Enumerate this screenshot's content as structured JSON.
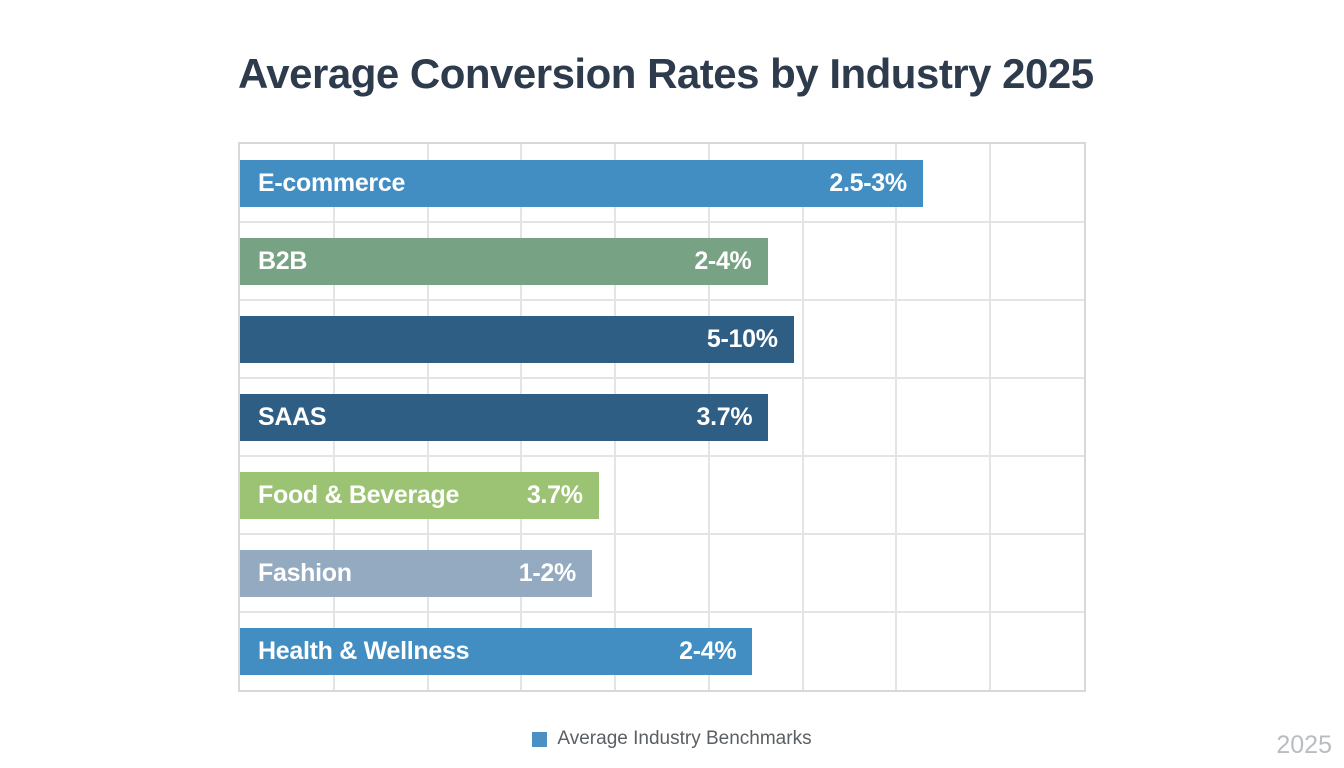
{
  "chart_data": {
    "type": "bar",
    "orientation": "horizontal",
    "title": "Average Conversion Rates by Industry 2025",
    "legend": {
      "label": "Average Industry Benchmarks",
      "marker_color": "#4a90c2",
      "position": "bottom-center"
    },
    "watermark": "2025",
    "grid": {
      "visible": true,
      "columns": 9,
      "rows": 7,
      "line_color": "#e4e4e4",
      "border_color": "#d8d8d8"
    },
    "bars": [
      {
        "label": "E-commerce",
        "value_label": "2.5-3%",
        "length_pct": 80.9,
        "color": "#428ec2"
      },
      {
        "label": "B2B",
        "value_label": "2-4%",
        "length_pct": 62.5,
        "color": "#78a284"
      },
      {
        "label": "",
        "value_label": "5-10%",
        "length_pct": 65.6,
        "color": "#2f5e85"
      },
      {
        "label": "SAAS",
        "value_label": "3.7%",
        "length_pct": 62.6,
        "color": "#2f5e85"
      },
      {
        "label": "Food & Beverage",
        "value_label": "3.7%",
        "length_pct": 42.5,
        "color": "#9bc373"
      },
      {
        "label": "Fashion",
        "value_label": "1-2%",
        "length_pct": 41.7,
        "color": "#93aac1"
      },
      {
        "label": "Health & Wellness",
        "value_label": "2-4%",
        "length_pct": 60.7,
        "color": "#428ec2"
      }
    ],
    "title_color": "#2d3b4d",
    "bar_text_color": "#ffffff"
  }
}
